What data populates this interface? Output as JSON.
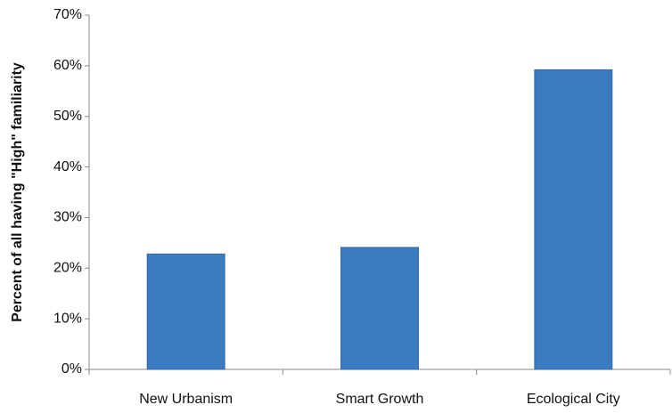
{
  "chart_data": {
    "type": "bar",
    "y_label": "Percent of all having \"High\" familiarity",
    "categories": [
      "New Urbanism",
      "Smart Growth",
      "Ecological City"
    ],
    "values": [
      22.8,
      24.1,
      59.2
    ],
    "color": "#3b7bc0",
    "ylim": [
      0,
      70
    ],
    "yticks": [
      {
        "value": 0,
        "label": "0%"
      },
      {
        "value": 10,
        "label": "10%"
      },
      {
        "value": 20,
        "label": "20%"
      },
      {
        "value": 30,
        "label": "30%"
      },
      {
        "value": 40,
        "label": "40%"
      },
      {
        "value": 50,
        "label": "50%"
      },
      {
        "value": 60,
        "label": "60%"
      },
      {
        "value": 70,
        "label": "70%"
      }
    ],
    "grid": false
  }
}
